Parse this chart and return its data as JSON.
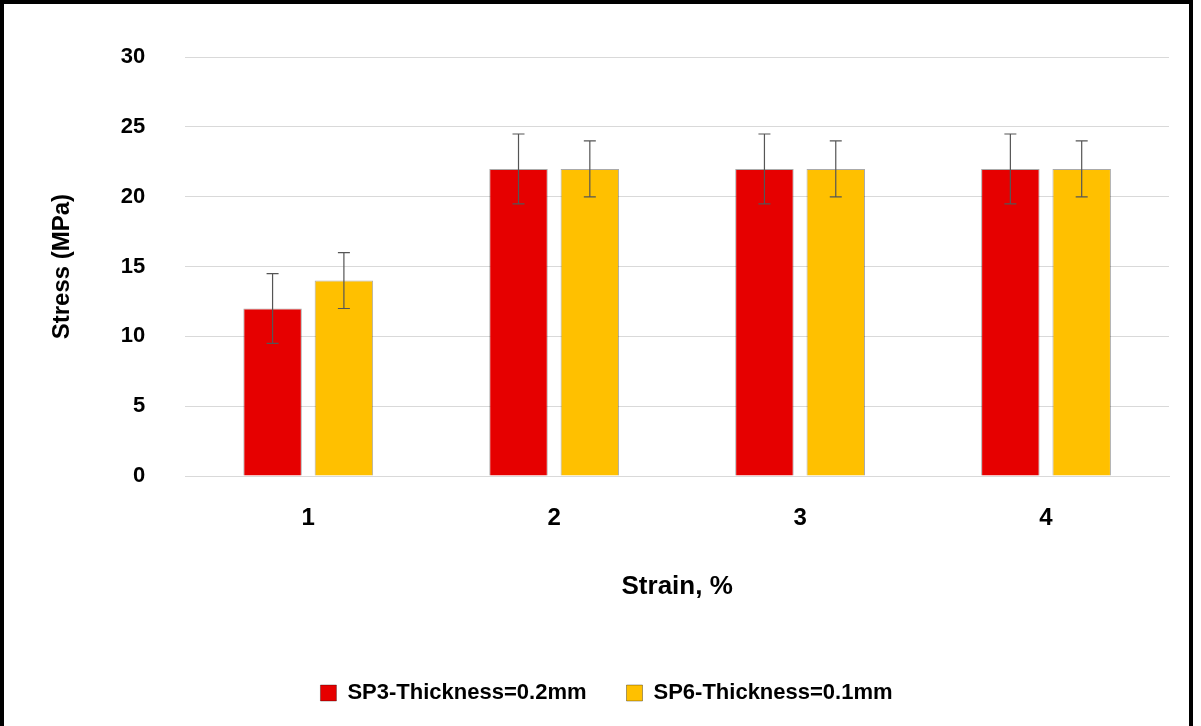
{
  "chart_data": {
    "type": "bar",
    "xlabel": "Strain, %",
    "ylabel": "Stress (MPa)",
    "categories": [
      "1",
      "2",
      "3",
      "4"
    ],
    "series": [
      {
        "name": "SP3-Thickness=0.2mm",
        "color": "#e60000",
        "values": [
          12,
          22,
          22,
          22
        ],
        "errors": [
          2.5,
          2.5,
          2.5,
          2.5
        ]
      },
      {
        "name": "SP6-Thickness=0.1mm",
        "color": "#ffc000",
        "values": [
          14,
          22,
          22,
          22
        ],
        "errors": [
          2,
          2,
          2,
          2
        ]
      }
    ],
    "ylim": [
      0,
      30
    ],
    "yticks": [
      0,
      5,
      10,
      15,
      20,
      25,
      30
    ],
    "grid": "y",
    "legend": "bottom"
  }
}
